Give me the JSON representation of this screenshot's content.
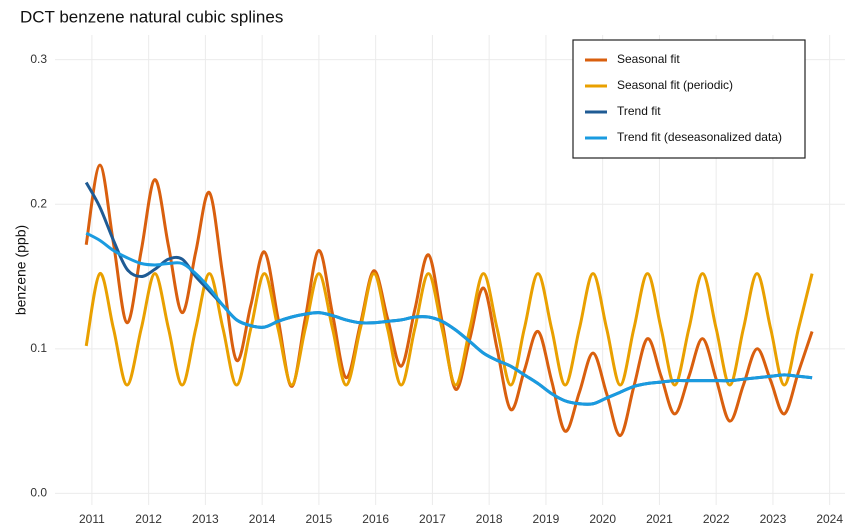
{
  "chart_data": {
    "type": "line",
    "title": "DCT benzene natural cubic splines",
    "y_label": "benzene (ppb)",
    "x": [
      2010.9,
      2011.14,
      2011.38,
      2011.62,
      2011.87,
      2012.11,
      2012.35,
      2012.59,
      2012.83,
      2013.07,
      2013.31,
      2013.55,
      2013.8,
      2014.04,
      2014.28,
      2014.52,
      2014.76,
      2015.0,
      2015.24,
      2015.48,
      2015.73,
      2015.97,
      2016.21,
      2016.45,
      2016.69,
      2016.93,
      2017.17,
      2017.41,
      2017.66,
      2017.9,
      2018.14,
      2018.38,
      2018.62,
      2018.86,
      2019.1,
      2019.34,
      2019.59,
      2019.83,
      2020.07,
      2020.31,
      2020.55,
      2020.79,
      2021.03,
      2021.27,
      2021.52,
      2021.76,
      2022.0,
      2022.24,
      2022.48,
      2022.72,
      2022.96,
      2023.2,
      2023.45,
      2023.69
    ],
    "series": [
      {
        "name": "Seasonal fit",
        "color": "#d95f0e",
        "values": [
          0.172,
          0.227,
          0.173,
          0.118,
          0.168,
          0.217,
          0.171,
          0.125,
          0.167,
          0.208,
          0.15,
          0.092,
          0.13,
          0.167,
          0.121,
          0.074,
          0.121,
          0.168,
          0.124,
          0.08,
          0.117,
          0.154,
          0.121,
          0.088,
          0.127,
          0.165,
          0.119,
          0.072,
          0.107,
          0.142,
          0.1,
          0.058,
          0.085,
          0.112,
          0.078,
          0.043,
          0.07,
          0.097,
          0.069,
          0.04,
          0.074,
          0.107,
          0.081,
          0.055,
          0.081,
          0.107,
          0.079,
          0.05,
          0.075,
          0.1,
          0.078,
          0.055,
          0.084,
          0.112
        ]
      },
      {
        "name": "Seasonal fit (periodic)",
        "color": "#e9a000",
        "values": [
          0.102,
          0.152,
          0.114,
          0.075,
          0.114,
          0.152,
          0.114,
          0.075,
          0.114,
          0.152,
          0.114,
          0.075,
          0.114,
          0.152,
          0.114,
          0.075,
          0.114,
          0.152,
          0.114,
          0.075,
          0.114,
          0.152,
          0.114,
          0.075,
          0.114,
          0.152,
          0.114,
          0.075,
          0.114,
          0.152,
          0.114,
          0.075,
          0.114,
          0.152,
          0.114,
          0.075,
          0.114,
          0.152,
          0.114,
          0.075,
          0.114,
          0.152,
          0.114,
          0.075,
          0.114,
          0.152,
          0.114,
          0.075,
          0.114,
          0.152,
          0.114,
          0.075,
          0.114,
          0.152
        ]
      },
      {
        "name": "Trend fit",
        "color": "#1f5b94",
        "values": [
          0.215,
          0.198,
          0.175,
          0.155,
          0.15,
          0.155,
          0.162,
          0.162,
          0.15,
          0.14,
          0.13,
          0.12,
          0.116,
          0.115,
          0.119,
          0.122,
          0.124,
          0.125,
          0.123,
          0.12,
          0.118,
          0.118,
          0.119,
          0.12,
          0.122,
          0.122,
          0.119,
          0.113,
          0.105,
          0.097,
          0.092,
          0.088,
          0.082,
          0.076,
          0.069,
          0.064,
          0.062,
          0.062,
          0.066,
          0.07,
          0.074,
          0.076,
          0.077,
          0.078,
          0.078,
          0.078,
          0.078,
          0.078,
          0.079,
          0.08,
          0.081,
          0.082,
          0.081,
          0.08
        ]
      },
      {
        "name": "Trend fit (deseasonalized data)",
        "color": "#1a9be0",
        "values": [
          0.18,
          0.175,
          0.168,
          0.163,
          0.159,
          0.158,
          0.159,
          0.159,
          0.152,
          0.142,
          0.13,
          0.12,
          0.116,
          0.115,
          0.119,
          0.122,
          0.124,
          0.125,
          0.123,
          0.12,
          0.118,
          0.118,
          0.119,
          0.12,
          0.122,
          0.122,
          0.119,
          0.113,
          0.105,
          0.097,
          0.092,
          0.088,
          0.082,
          0.076,
          0.069,
          0.064,
          0.062,
          0.062,
          0.066,
          0.07,
          0.074,
          0.076,
          0.077,
          0.078,
          0.078,
          0.078,
          0.078,
          0.078,
          0.079,
          0.08,
          0.081,
          0.082,
          0.081,
          0.08
        ]
      }
    ],
    "xlim": [
      2010.35,
      2024.27
    ],
    "xticks": [
      2011,
      2012,
      2013,
      2014,
      2015,
      2016,
      2017,
      2018,
      2019,
      2020,
      2021,
      2022,
      2023,
      2024
    ],
    "ylim": [
      -0.008,
      0.317
    ],
    "yticks": [
      {
        "value": 0,
        "label": "0.0"
      },
      0.1,
      0.2,
      0.3
    ],
    "grid": true,
    "legend": "top-right"
  }
}
